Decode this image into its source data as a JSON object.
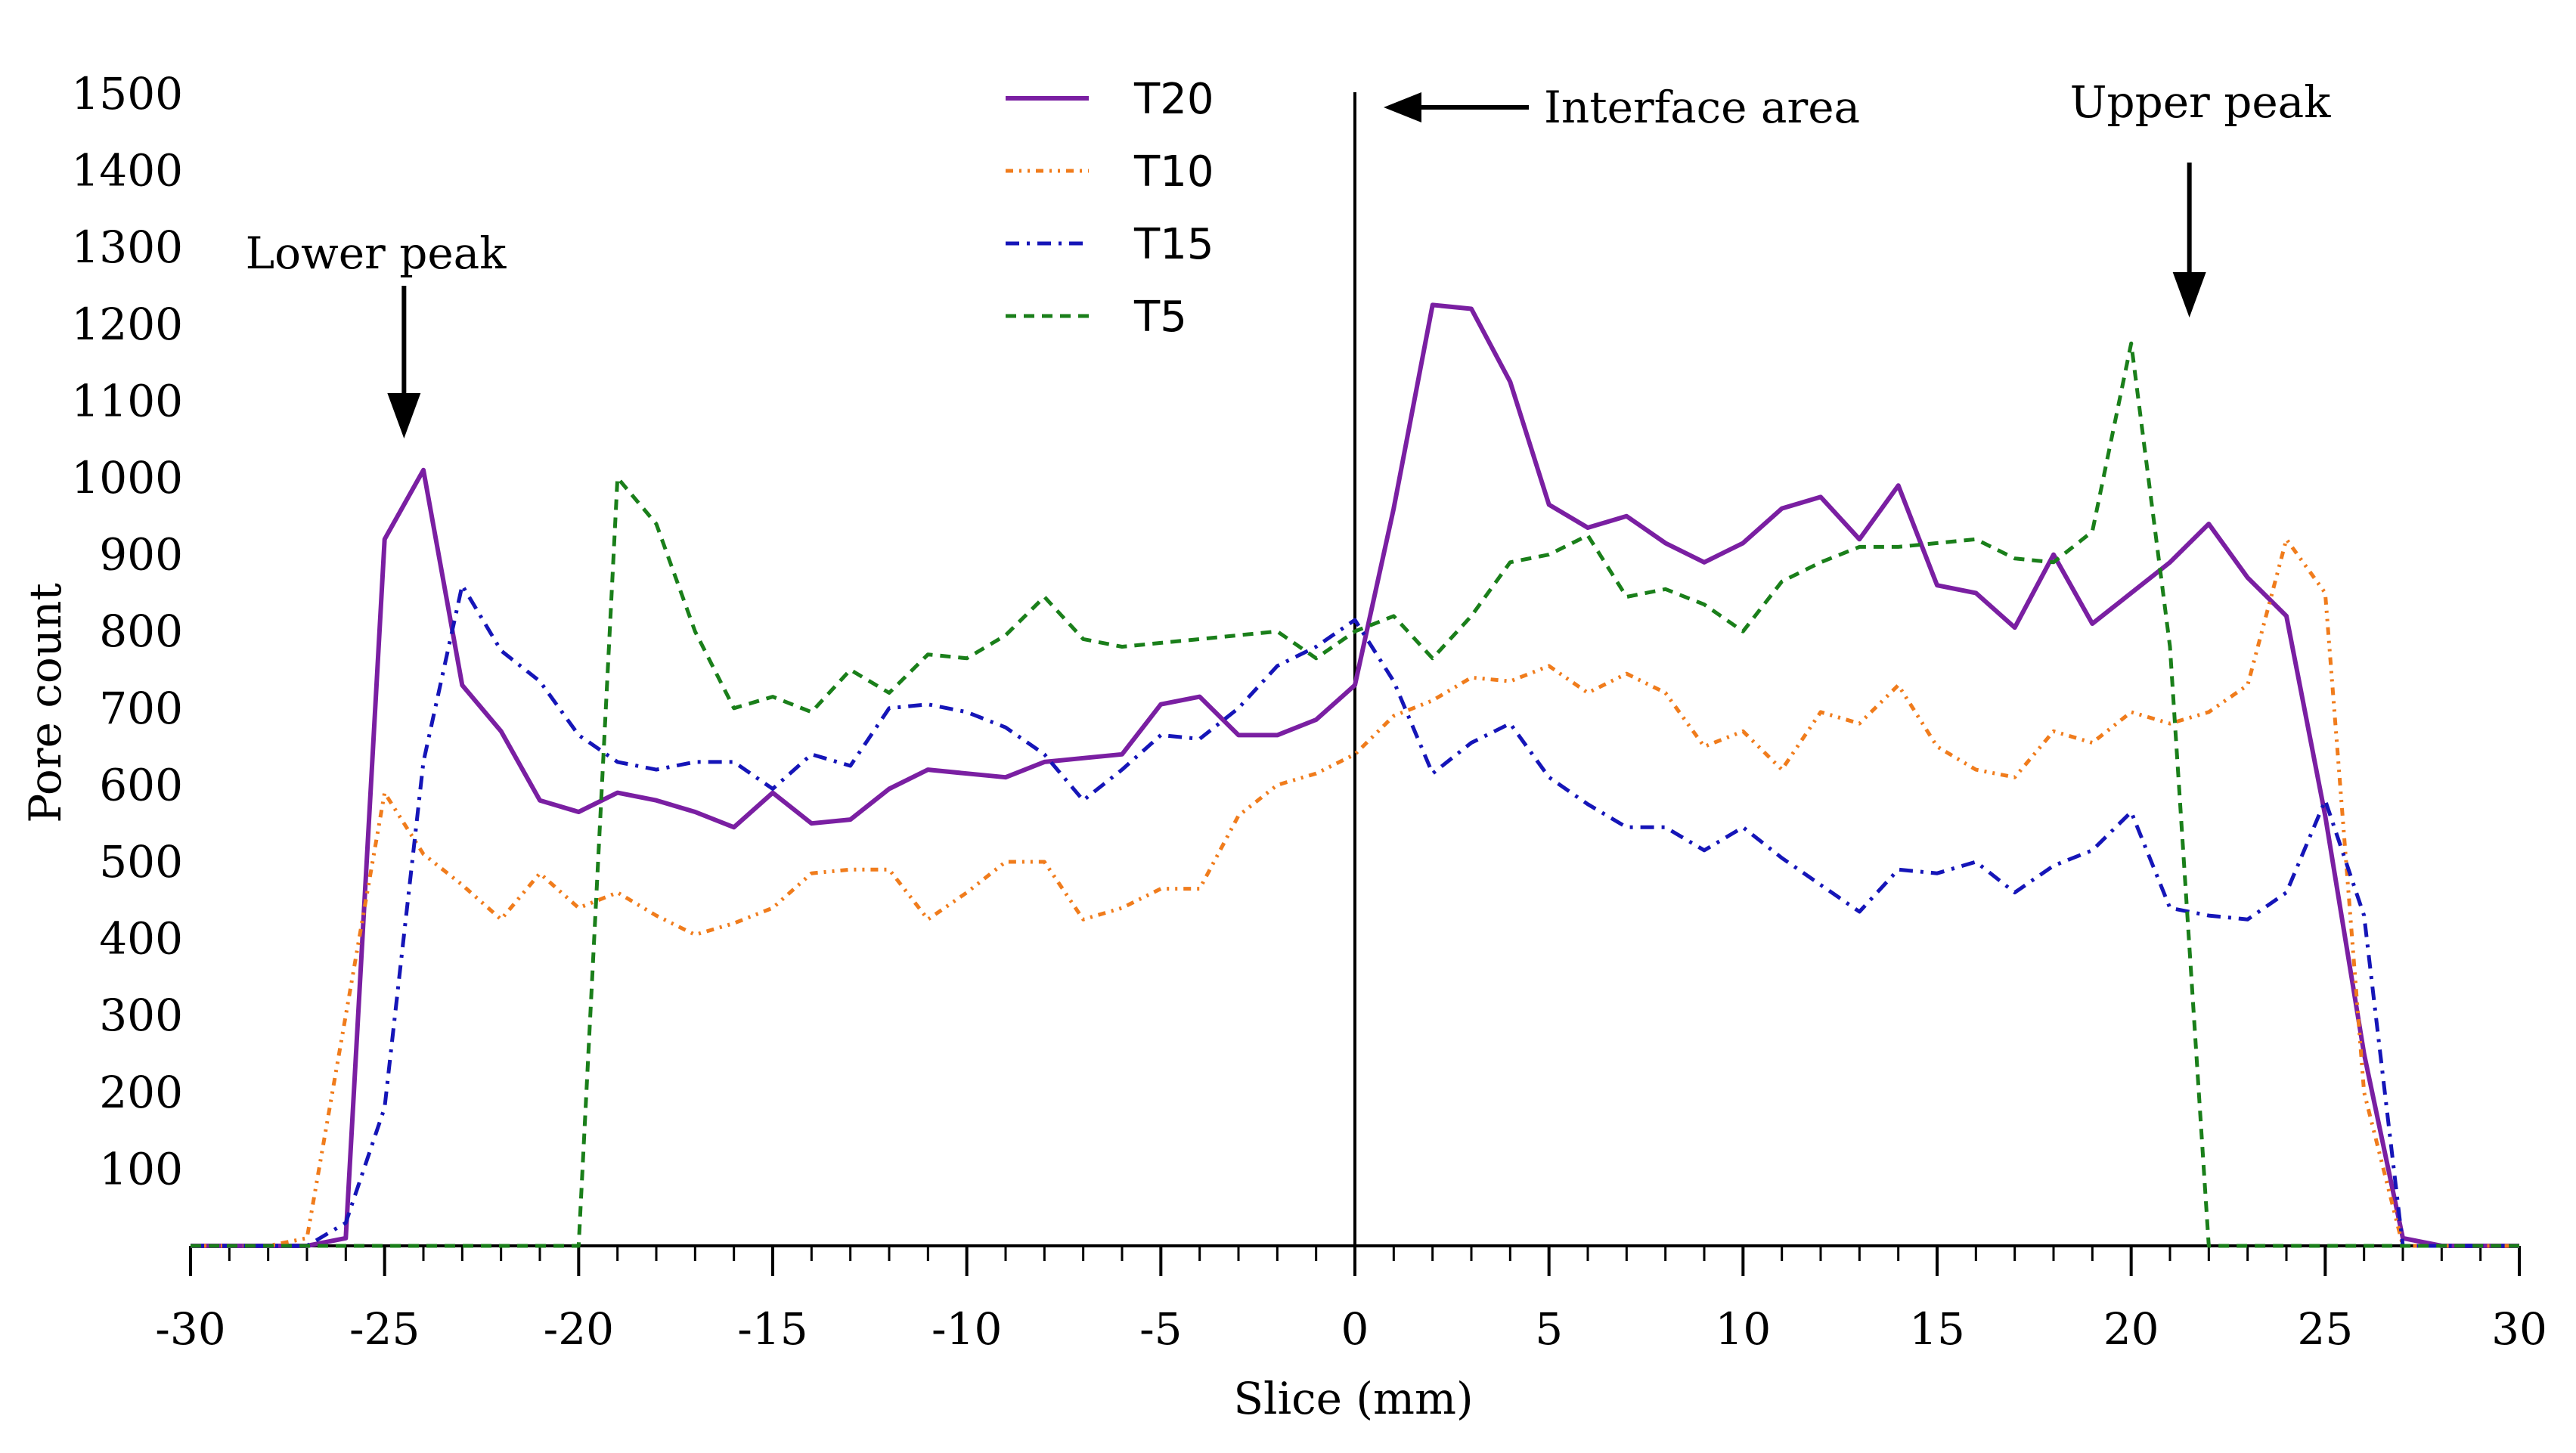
{
  "chart_data": {
    "type": "line",
    "title": "",
    "xlabel": "Slice (mm)",
    "ylabel": "Pore count",
    "xlim": [
      -30,
      30
    ],
    "ylim": [
      0,
      1500
    ],
    "x_ticks": [
      -30,
      -25,
      -20,
      -15,
      -10,
      -5,
      0,
      5,
      10,
      15,
      20,
      25,
      30
    ],
    "x_tick_labels": [
      "-30",
      "-25",
      "-20",
      "-15",
      "-10",
      "-5",
      "0",
      "5",
      "10",
      "15",
      "20",
      "25",
      "30"
    ],
    "y_ticks": [
      100,
      200,
      300,
      400,
      500,
      600,
      700,
      800,
      900,
      1000,
      1100,
      1200,
      1300,
      1400,
      1500
    ],
    "y_tick_labels": [
      "100",
      "200",
      "300",
      "400",
      "500",
      "600",
      "700",
      "800",
      "900",
      "1000",
      "1100",
      "1200",
      "1300",
      "1400",
      "1500"
    ],
    "x": [
      -30,
      -29,
      -28,
      -27,
      -26,
      -25,
      -24,
      -23,
      -22,
      -21,
      -20,
      -19,
      -18,
      -17,
      -16,
      -15,
      -14,
      -13,
      -12,
      -11,
      -10,
      -9,
      -8,
      -7,
      -6,
      -5,
      -4,
      -3,
      -2,
      -1,
      0,
      1,
      2,
      3,
      4,
      5,
      6,
      7,
      8,
      9,
      10,
      11,
      12,
      13,
      14,
      15,
      16,
      17,
      18,
      19,
      20,
      21,
      22,
      23,
      24,
      25,
      26,
      27,
      28,
      29,
      30
    ],
    "series": [
      {
        "name": "T20",
        "color": "#7a1fa2",
        "dash": "solid",
        "values": [
          0,
          0,
          0,
          0,
          10,
          920,
          1010,
          730,
          670,
          580,
          565,
          590,
          580,
          565,
          545,
          590,
          550,
          555,
          595,
          620,
          615,
          610,
          630,
          635,
          640,
          705,
          715,
          665,
          665,
          685,
          730,
          960,
          1225,
          1220,
          1125,
          965,
          935,
          950,
          915,
          890,
          915,
          960,
          975,
          920,
          990,
          860,
          850,
          805,
          900,
          810,
          850,
          890,
          940,
          870,
          820,
          560,
          250,
          10,
          0,
          0,
          0
        ]
      },
      {
        "name": "T10",
        "color": "#f07c1c",
        "dash": "dash-dot-dot",
        "values": [
          0,
          0,
          0,
          10,
          300,
          590,
          510,
          470,
          425,
          485,
          440,
          460,
          430,
          405,
          420,
          440,
          485,
          490,
          490,
          425,
          460,
          500,
          500,
          425,
          440,
          465,
          465,
          560,
          600,
          615,
          640,
          690,
          710,
          740,
          735,
          755,
          720,
          745,
          720,
          650,
          670,
          620,
          695,
          680,
          730,
          650,
          620,
          610,
          670,
          655,
          695,
          680,
          695,
          730,
          920,
          850,
          200,
          0,
          0,
          0,
          0
        ]
      },
      {
        "name": "T15",
        "color": "#1515b8",
        "dash": "dash-dot",
        "values": [
          0,
          0,
          0,
          0,
          30,
          180,
          630,
          860,
          775,
          735,
          665,
          630,
          620,
          630,
          630,
          595,
          640,
          625,
          700,
          705,
          695,
          675,
          640,
          580,
          620,
          665,
          660,
          700,
          755,
          780,
          815,
          735,
          615,
          655,
          680,
          610,
          575,
          545,
          545,
          515,
          545,
          505,
          470,
          435,
          490,
          485,
          500,
          460,
          495,
          515,
          565,
          440,
          430,
          425,
          460,
          580,
          430,
          0,
          0,
          0,
          0
        ]
      },
      {
        "name": "T5",
        "color": "#1a7f1a",
        "dash": "dashed",
        "values": [
          0,
          0,
          0,
          0,
          0,
          0,
          0,
          0,
          0,
          0,
          0,
          1000,
          940,
          800,
          700,
          715,
          695,
          750,
          720,
          770,
          765,
          795,
          845,
          790,
          780,
          785,
          790,
          795,
          800,
          765,
          800,
          820,
          765,
          820,
          890,
          900,
          925,
          845,
          855,
          835,
          800,
          865,
          890,
          910,
          910,
          915,
          920,
          895,
          890,
          930,
          1175,
          780,
          0,
          0,
          0,
          0,
          0,
          0,
          0,
          0,
          0
        ]
      }
    ],
    "legend_position": "top-center",
    "grid": false,
    "vertical_reference_line_x": 0,
    "annotations": [
      {
        "text": "Lower peak",
        "arrow_x": -24.5,
        "arrow_y": 1000,
        "direction": "down"
      },
      {
        "text": "Upper peak",
        "arrow_x": 21.5,
        "arrow_y": 1200,
        "direction": "down"
      },
      {
        "text": "Interface area",
        "arrow_x": 0.8,
        "arrow_y": 1470,
        "direction": "left"
      }
    ]
  }
}
